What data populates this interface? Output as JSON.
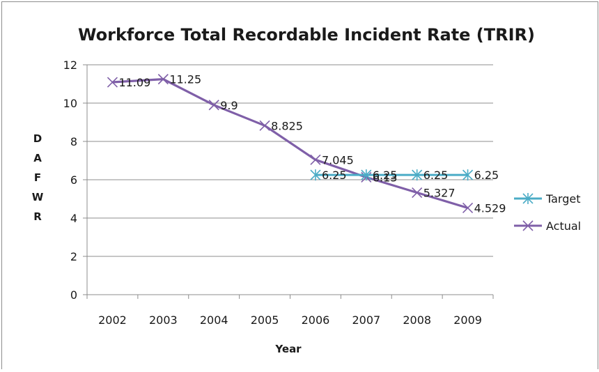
{
  "chart_data": {
    "type": "line",
    "title": "Workforce Total Recordable Incident Rate (TRIR)",
    "xlabel": "Year",
    "ylabel": "DAFWR",
    "categories": [
      "2002",
      "2003",
      "2004",
      "2005",
      "2006",
      "2007",
      "2008",
      "2009"
    ],
    "ylim": [
      0,
      12
    ],
    "yticks": [
      0,
      2,
      4,
      6,
      8,
      10,
      12
    ],
    "grid": true,
    "legend": "right",
    "series": [
      {
        "name": "Target",
        "color": "#4bacc6",
        "marker": "asterisk",
        "values": [
          null,
          null,
          null,
          null,
          6.25,
          6.25,
          6.25,
          6.25
        ],
        "labels": [
          "",
          "",
          "",
          "",
          "6.25",
          "6.25",
          "6.25",
          "6.25"
        ]
      },
      {
        "name": "Actual",
        "color": "#7f5fa8",
        "marker": "x",
        "values": [
          11.09,
          11.25,
          9.9,
          8.825,
          7.045,
          6.13,
          5.327,
          4.529
        ],
        "labels": [
          "11.09",
          "11.25",
          "9.9",
          "8.825",
          "7.045",
          "6.13",
          "5.327",
          "4.529"
        ]
      }
    ]
  }
}
